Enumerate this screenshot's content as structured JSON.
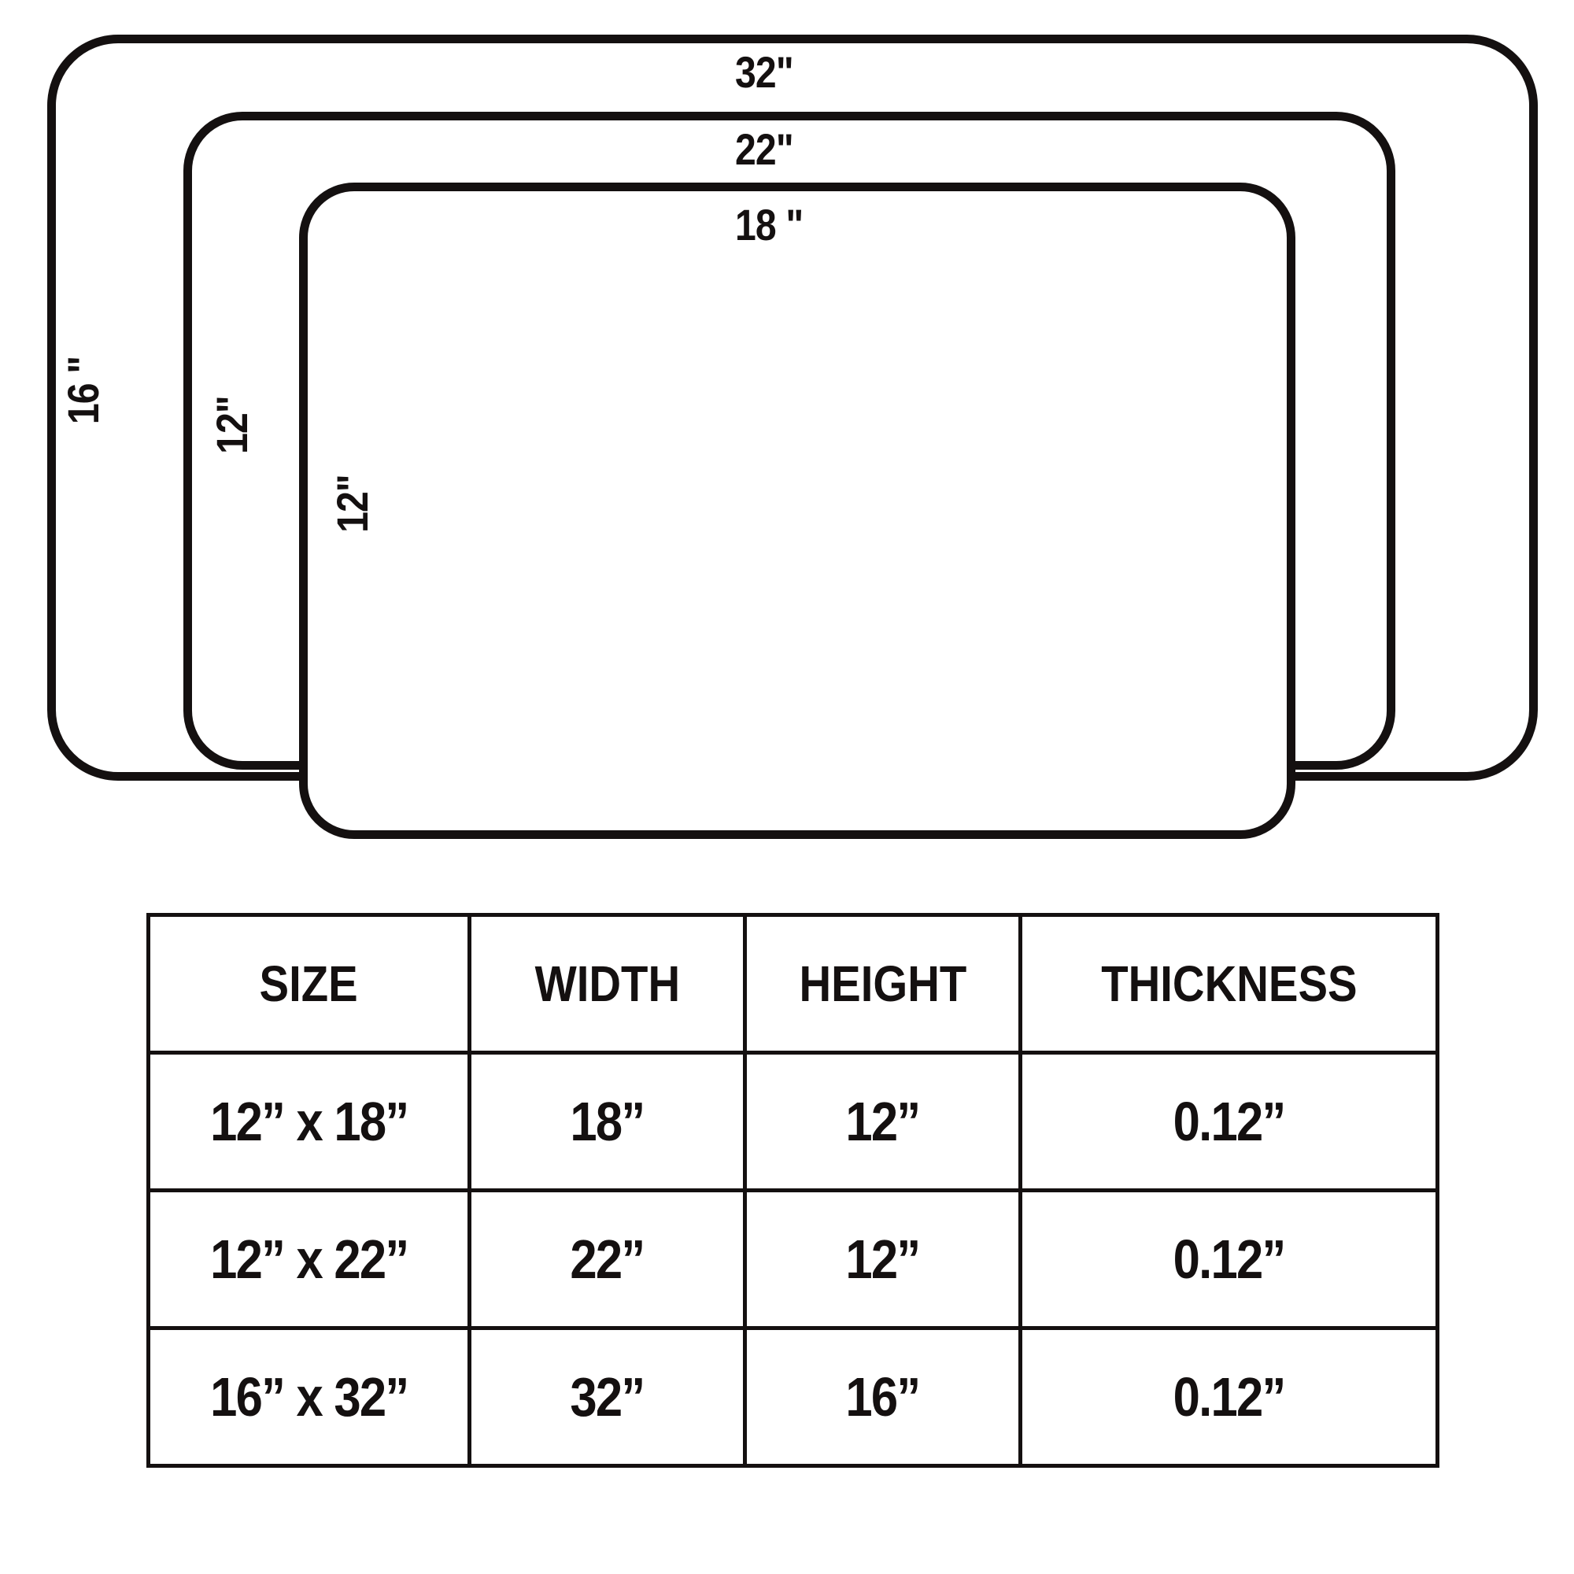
{
  "diagram": {
    "large": {
      "width_label": "32\"",
      "height_label": "16 \""
    },
    "medium": {
      "width_label": "22\"",
      "height_label": "12\""
    },
    "small": {
      "width_label": "18 \"",
      "height_label": "12\""
    }
  },
  "table": {
    "headers": [
      "SIZE",
      "WIDTH",
      "HEIGHT",
      "THICKNESS"
    ],
    "rows": [
      [
        "12” x 18”",
        "18”",
        "12”",
        "0.12”"
      ],
      [
        "12” x 22”",
        "22”",
        "12”",
        "0.12”"
      ],
      [
        "16” x 32”",
        "32”",
        "16”",
        "0.12”"
      ]
    ]
  }
}
